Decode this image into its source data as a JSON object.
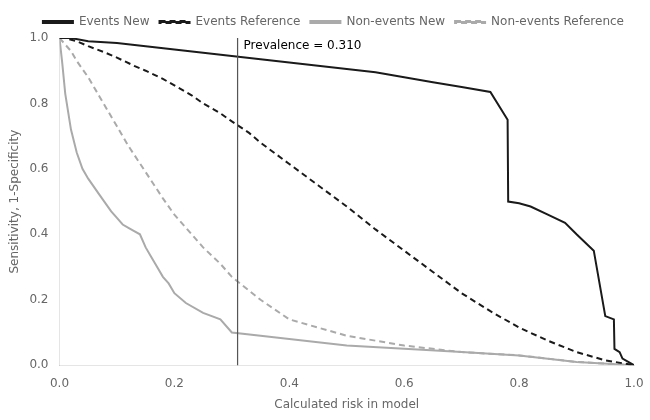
{
  "chart_data": {
    "type": "line",
    "xlabel": "Calculated risk in model",
    "ylabel": "Sensitivity, 1-Specificity",
    "xlim": [
      0.0,
      1.0
    ],
    "ylim": [
      0.0,
      1.0
    ],
    "xticks": [
      {
        "value": 0.0,
        "label": "0.0"
      },
      0.2,
      0.4,
      0.6,
      0.8,
      {
        "value": 1.0,
        "label": "1.0"
      }
    ],
    "yticks": [
      {
        "value": 0.0,
        "label": "0.0"
      },
      0.2,
      0.4,
      0.6,
      0.8,
      {
        "value": 1.0,
        "label": "1.0"
      }
    ],
    "grid": false,
    "legend": "top-right",
    "annotations": [
      {
        "type": "vline",
        "x": 0.31,
        "text": "Prevalence = 0.310",
        "color": "#555555"
      }
    ],
    "series": [
      {
        "name": "Events New",
        "color": "#1a1a1a",
        "line_style": "solid",
        "x": [
          0.0,
          0.02,
          0.05,
          0.1,
          0.15,
          0.2,
          0.25,
          0.3,
          0.35,
          0.4,
          0.45,
          0.5,
          0.55,
          0.6,
          0.65,
          0.7,
          0.75,
          0.78,
          0.781,
          0.8,
          0.82,
          0.85,
          0.88,
          0.9,
          0.93,
          0.95,
          0.965,
          0.966,
          0.975,
          0.98,
          1.0
        ],
        "values": [
          1.0,
          1.0,
          0.99,
          0.985,
          0.975,
          0.965,
          0.955,
          0.945,
          0.935,
          0.925,
          0.915,
          0.905,
          0.895,
          0.88,
          0.865,
          0.85,
          0.835,
          0.75,
          0.5,
          0.495,
          0.485,
          0.46,
          0.435,
          0.4,
          0.35,
          0.15,
          0.14,
          0.05,
          0.04,
          0.02,
          0.0
        ]
      },
      {
        "name": "Events Reference",
        "color": "#1a1a1a",
        "line_style": "dashed",
        "x": [
          0.0,
          0.01,
          0.03,
          0.05,
          0.08,
          0.1,
          0.13,
          0.15,
          0.18,
          0.2,
          0.23,
          0.25,
          0.28,
          0.3,
          0.33,
          0.35,
          0.4,
          0.45,
          0.5,
          0.55,
          0.6,
          0.65,
          0.7,
          0.75,
          0.8,
          0.85,
          0.9,
          0.95,
          1.0
        ],
        "values": [
          1.0,
          1.0,
          0.99,
          0.975,
          0.955,
          0.94,
          0.915,
          0.9,
          0.875,
          0.855,
          0.825,
          0.8,
          0.77,
          0.745,
          0.71,
          0.68,
          0.615,
          0.55,
          0.485,
          0.415,
          0.35,
          0.285,
          0.22,
          0.165,
          0.115,
          0.075,
          0.04,
          0.015,
          0.0
        ]
      },
      {
        "name": "Non-events New",
        "color": "#aaaaaa",
        "line_style": "solid",
        "x": [
          0.0,
          0.005,
          0.01,
          0.02,
          0.03,
          0.04,
          0.05,
          0.07,
          0.09,
          0.1,
          0.11,
          0.12,
          0.13,
          0.14,
          0.15,
          0.16,
          0.17,
          0.18,
          0.19,
          0.2,
          0.22,
          0.25,
          0.28,
          0.3,
          0.35,
          0.4,
          0.5,
          0.6,
          0.7,
          0.8,
          0.9,
          1.0
        ],
        "values": [
          1.0,
          0.92,
          0.83,
          0.72,
          0.65,
          0.6,
          0.57,
          0.52,
          0.47,
          0.45,
          0.43,
          0.42,
          0.41,
          0.4,
          0.36,
          0.33,
          0.3,
          0.27,
          0.25,
          0.22,
          0.19,
          0.16,
          0.14,
          0.1,
          0.09,
          0.08,
          0.06,
          0.05,
          0.04,
          0.03,
          0.01,
          0.0
        ]
      },
      {
        "name": "Non-events Reference",
        "color": "#aaaaaa",
        "line_style": "dashed",
        "x": [
          0.0,
          0.01,
          0.02,
          0.03,
          0.05,
          0.07,
          0.09,
          0.1,
          0.12,
          0.15,
          0.18,
          0.2,
          0.23,
          0.25,
          0.28,
          0.3,
          0.35,
          0.4,
          0.5,
          0.6,
          0.7,
          0.8,
          0.9,
          1.0
        ],
        "values": [
          1.0,
          0.98,
          0.96,
          0.93,
          0.88,
          0.82,
          0.76,
          0.73,
          0.67,
          0.59,
          0.51,
          0.46,
          0.4,
          0.36,
          0.31,
          0.27,
          0.2,
          0.14,
          0.09,
          0.06,
          0.04,
          0.03,
          0.01,
          0.0
        ]
      }
    ]
  }
}
